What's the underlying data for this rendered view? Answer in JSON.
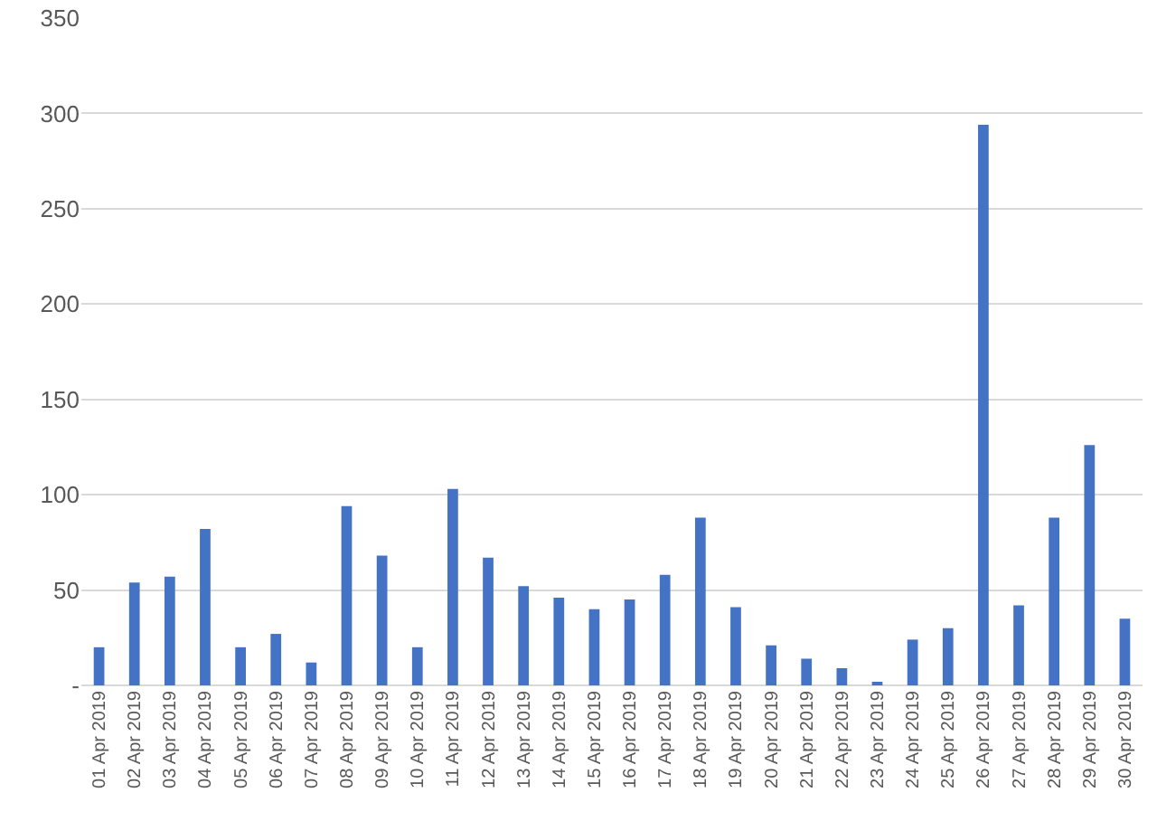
{
  "chart_data": {
    "type": "bar",
    "categories": [
      "01 Apr 2019",
      "02 Apr 2019",
      "03 Apr 2019",
      "04 Apr 2019",
      "05 Apr 2019",
      "06 Apr 2019",
      "07 Apr 2019",
      "08 Apr 2019",
      "09 Apr 2019",
      "10 Apr 2019",
      "11 Apr 2019",
      "12 Apr 2019",
      "13 Apr 2019",
      "14 Apr 2019",
      "15 Apr 2019",
      "16 Apr 2019",
      "17 Apr 2019",
      "18 Apr 2019",
      "19 Apr 2019",
      "20 Apr 2019",
      "21 Apr 2019",
      "22 Apr 2019",
      "23 Apr 2019",
      "24 Apr 2019",
      "25 Apr 2019",
      "26 Apr 2019",
      "27 Apr 2019",
      "28 Apr 2019",
      "29 Apr 2019",
      "30 Apr 2019"
    ],
    "values": [
      20,
      54,
      57,
      82,
      20,
      27,
      12,
      94,
      68,
      20,
      103,
      67,
      52,
      46,
      40,
      45,
      58,
      88,
      41,
      21,
      14,
      9,
      1,
      24,
      30,
      294,
      42,
      88,
      126,
      35
    ],
    "color": "#4472c4",
    "ylim": [
      0,
      350
    ],
    "yticks": [
      {
        "value": 0,
        "label": "-"
      },
      50,
      100,
      150,
      200,
      250,
      300,
      350
    ],
    "grid": "y"
  }
}
